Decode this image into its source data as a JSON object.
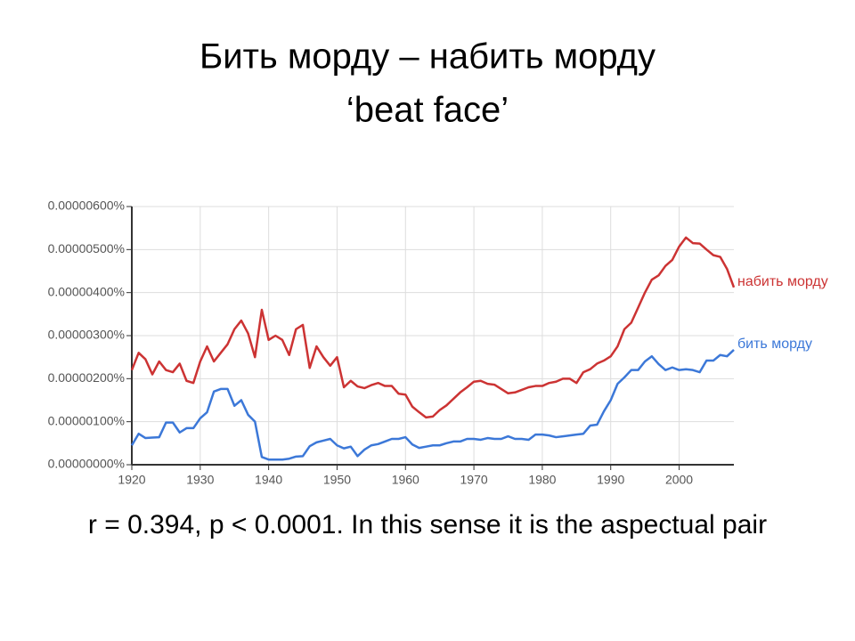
{
  "chart_data": {
    "type": "line",
    "title": "Бить морду – набить морду",
    "subtitle": "‘beat face’",
    "caption": "r = 0.394, p < 0.0001. In this sense it is the aspectual pair",
    "x": [
      1920,
      1921,
      1922,
      1923,
      1924,
      1925,
      1926,
      1927,
      1928,
      1929,
      1930,
      1931,
      1932,
      1933,
      1934,
      1935,
      1936,
      1937,
      1938,
      1939,
      1940,
      1941,
      1942,
      1943,
      1944,
      1945,
      1946,
      1947,
      1948,
      1949,
      1950,
      1951,
      1952,
      1953,
      1954,
      1955,
      1956,
      1957,
      1958,
      1959,
      1960,
      1961,
      1962,
      1963,
      1964,
      1965,
      1966,
      1967,
      1968,
      1969,
      1970,
      1971,
      1972,
      1973,
      1974,
      1975,
      1976,
      1977,
      1978,
      1979,
      1980,
      1981,
      1982,
      1983,
      1984,
      1985,
      1986,
      1987,
      1988,
      1989,
      1990,
      1991,
      1992,
      1993,
      1994,
      1995,
      1996,
      1997,
      1998,
      1999,
      2000,
      2001,
      2002,
      2003,
      2004,
      2005,
      2006,
      2007,
      2008
    ],
    "series": [
      {
        "name": "набить морду",
        "color": "#cc3333",
        "values": [
          2.2e-06,
          2.6e-06,
          2.45e-06,
          2.1e-06,
          2.4e-06,
          2.2e-06,
          2.15e-06,
          2.35e-06,
          1.95e-06,
          1.9e-06,
          2.4e-06,
          2.75e-06,
          2.4e-06,
          2.6e-06,
          2.8e-06,
          3.15e-06,
          3.35e-06,
          3.05e-06,
          2.5e-06,
          3.6e-06,
          2.9e-06,
          3e-06,
          2.9e-06,
          2.55e-06,
          3.15e-06,
          3.25e-06,
          2.25e-06,
          2.75e-06,
          2.5e-06,
          2.3e-06,
          2.5e-06,
          1.8e-06,
          1.95e-06,
          1.82e-06,
          1.78e-06,
          1.85e-06,
          1.9e-06,
          1.83e-06,
          1.83e-06,
          1.65e-06,
          1.63e-06,
          1.35e-06,
          1.22e-06,
          1.1e-06,
          1.12e-06,
          1.27e-06,
          1.38e-06,
          1.53e-06,
          1.68e-06,
          1.8e-06,
          1.93e-06,
          1.95e-06,
          1.88e-06,
          1.86e-06,
          1.76e-06,
          1.66e-06,
          1.68e-06,
          1.74e-06,
          1.8e-06,
          1.83e-06,
          1.83e-06,
          1.9e-06,
          1.93e-06,
          2e-06,
          2e-06,
          1.9e-06,
          2.15e-06,
          2.22e-06,
          2.35e-06,
          2.42e-06,
          2.52e-06,
          2.75e-06,
          3.15e-06,
          3.3e-06,
          3.65e-06,
          4e-06,
          4.3e-06,
          4.4e-06,
          4.62e-06,
          4.76e-06,
          5.07e-06,
          5.28e-06,
          5.15e-06,
          5.14e-06,
          5e-06,
          4.87e-06,
          4.83e-06,
          4.55e-06,
          4.12e-06
        ]
      },
      {
        "name": "бить морду",
        "color": "#3c78d8",
        "values": [
          4.5e-07,
          7.2e-07,
          6.2e-07,
          6.3e-07,
          6.4e-07,
          9.8e-07,
          9.8e-07,
          7.5e-07,
          8.5e-07,
          8.5e-07,
          1.08e-06,
          1.22e-06,
          1.7e-06,
          1.76e-06,
          1.76e-06,
          1.37e-06,
          1.5e-06,
          1.16e-06,
          1e-06,
          1.8e-07,
          1.2e-07,
          1.2e-07,
          1.2e-07,
          1.4e-07,
          1.9e-07,
          2e-07,
          4.3e-07,
          5.2e-07,
          5.6e-07,
          6e-07,
          4.5e-07,
          3.8e-07,
          4.2e-07,
          2e-07,
          3.5e-07,
          4.5e-07,
          4.8e-07,
          5.4e-07,
          6e-07,
          6e-07,
          6.4e-07,
          4.7e-07,
          3.9e-07,
          4.2e-07,
          4.5e-07,
          4.5e-07,
          5e-07,
          5.4e-07,
          5.4e-07,
          6e-07,
          6e-07,
          5.8e-07,
          6.2e-07,
          6e-07,
          6e-07,
          6.6e-07,
          6e-07,
          6e-07,
          5.8e-07,
          7e-07,
          7e-07,
          6.8e-07,
          6.4e-07,
          6.6e-07,
          6.8e-07,
          7e-07,
          7.2e-07,
          9.1e-07,
          9.3e-07,
          1.24e-06,
          1.5e-06,
          1.88e-06,
          2.03e-06,
          2.2e-06,
          2.2e-06,
          2.4e-06,
          2.52e-06,
          2.34e-06,
          2.2e-06,
          2.26e-06,
          2.2e-06,
          2.22e-06,
          2.2e-06,
          2.15e-06,
          2.42e-06,
          2.42e-06,
          2.55e-06,
          2.52e-06,
          2.67e-06
        ]
      }
    ],
    "xlim": [
      1920,
      2008
    ],
    "xticks": [
      1920,
      1930,
      1940,
      1950,
      1960,
      1970,
      1980,
      1990,
      2000
    ],
    "ylim": [
      0,
      6e-06
    ],
    "yticks": [
      {
        "value": 0,
        "label": "0.00000000%"
      },
      {
        "value": 1e-06,
        "label": "0.00000100%"
      },
      {
        "value": 2e-06,
        "label": "0.00000200%"
      },
      {
        "value": 3e-06,
        "label": "0.00000300%"
      },
      {
        "value": 4e-06,
        "label": "0.00000400%"
      },
      {
        "value": 5e-06,
        "label": "0.00000500%"
      },
      {
        "value": 6e-06,
        "label": "0.00000600%"
      }
    ],
    "grid": true
  }
}
